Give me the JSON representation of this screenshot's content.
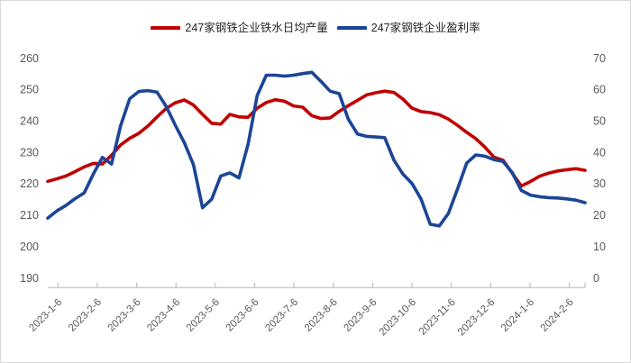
{
  "chart_data": {
    "type": "line",
    "title": "",
    "grid": false,
    "legend_position": "top",
    "categories": [
      "2023-1-6",
      "2023-1-13",
      "2023-1-20",
      "2023-1-27",
      "2023-2-3",
      "2023-2-10",
      "2023-2-17",
      "2023-2-24",
      "2023-3-3",
      "2023-3-10",
      "2023-3-17",
      "2023-3-24",
      "2023-3-31",
      "2023-4-7",
      "2023-4-14",
      "2023-4-21",
      "2023-4-28",
      "2023-5-5",
      "2023-5-12",
      "2023-5-19",
      "2023-5-26",
      "2023-6-2",
      "2023-6-9",
      "2023-6-16",
      "2023-6-23",
      "2023-6-30",
      "2023-7-7",
      "2023-7-14",
      "2023-7-21",
      "2023-7-28",
      "2023-8-4",
      "2023-8-11",
      "2023-8-18",
      "2023-8-25",
      "2023-9-1",
      "2023-9-8",
      "2023-9-15",
      "2023-9-22",
      "2023-9-29",
      "2023-10-6",
      "2023-10-13",
      "2023-10-20",
      "2023-10-27",
      "2023-11-3",
      "2023-11-10",
      "2023-11-17",
      "2023-11-24",
      "2023-12-1",
      "2023-12-8",
      "2023-12-15",
      "2023-12-22",
      "2023-12-29",
      "2024-1-5",
      "2024-1-12",
      "2024-1-19",
      "2024-1-26",
      "2024-2-2",
      "2024-2-9",
      "2024-2-16",
      "2024-2-23"
    ],
    "x_axis_month_labels": [
      "2023-1-6",
      "2023-2-6",
      "2023-3-6",
      "2023-4-6",
      "2023-5-6",
      "2023-6-6",
      "2023-7-6",
      "2023-8-6",
      "2023-9-6",
      "2023-10-6",
      "2023-11-6",
      "2023-12-6",
      "2024-1-6",
      "2024-2-6"
    ],
    "series": [
      {
        "name": "247家钢铁企业铁水日均产量",
        "axis": "left",
        "color": "#c00000",
        "values": [
          220.7,
          221.5,
          222.4,
          223.8,
          225.3,
          226.4,
          226.2,
          229.0,
          232.3,
          234.4,
          236.0,
          238.3,
          241.2,
          243.9,
          245.7,
          246.6,
          245.0,
          242.0,
          239.2,
          238.9,
          242.0,
          241.2,
          241.1,
          244.0,
          245.8,
          246.7,
          246.2,
          244.7,
          244.3,
          241.6,
          240.7,
          240.9,
          243.0,
          244.8,
          246.5,
          248.2,
          248.9,
          249.4,
          249.0,
          246.9,
          244.0,
          242.9,
          242.6,
          241.9,
          240.5,
          238.5,
          236.3,
          234.3,
          231.6,
          228.4,
          227.4,
          223.3,
          219.2,
          220.6,
          222.3,
          223.3,
          224.0,
          224.4,
          224.7,
          224.2
        ]
      },
      {
        "name": "247家钢铁企业盈利率",
        "axis": "right",
        "color": "#1c4596",
        "values": [
          19.0,
          21.3,
          23.0,
          25.2,
          27.0,
          33.0,
          38.3,
          36.2,
          48.4,
          57.0,
          59.3,
          59.6,
          59.1,
          54.6,
          48.6,
          43.0,
          36.0,
          22.3,
          25.0,
          32.4,
          33.4,
          31.8,
          42.5,
          58.0,
          64.5,
          64.5,
          64.2,
          64.5,
          65.0,
          65.4,
          62.5,
          59.4,
          58.6,
          50.5,
          45.8,
          45.0,
          44.8,
          44.6,
          37.5,
          33.0,
          30.0,
          25.0,
          17.0,
          16.5,
          20.5,
          28.3,
          36.5,
          39.1,
          38.7,
          37.6,
          37.0,
          33.5,
          27.8,
          26.3,
          25.8,
          25.5,
          25.4,
          25.1,
          24.7,
          23.9
        ]
      }
    ],
    "left_axis": {
      "min": 190,
      "max": 260,
      "ticks": [
        190,
        200,
        210,
        220,
        230,
        240,
        250,
        260
      ]
    },
    "right_axis": {
      "min": 0,
      "max": 70,
      "ticks": [
        0,
        10,
        20,
        30,
        40,
        50,
        60,
        70
      ]
    }
  },
  "style": {
    "axis_line_color": "#bfbfbf",
    "axis_label_color": "#595959",
    "legend_text_color": "#262626",
    "background": "#ffffff"
  }
}
